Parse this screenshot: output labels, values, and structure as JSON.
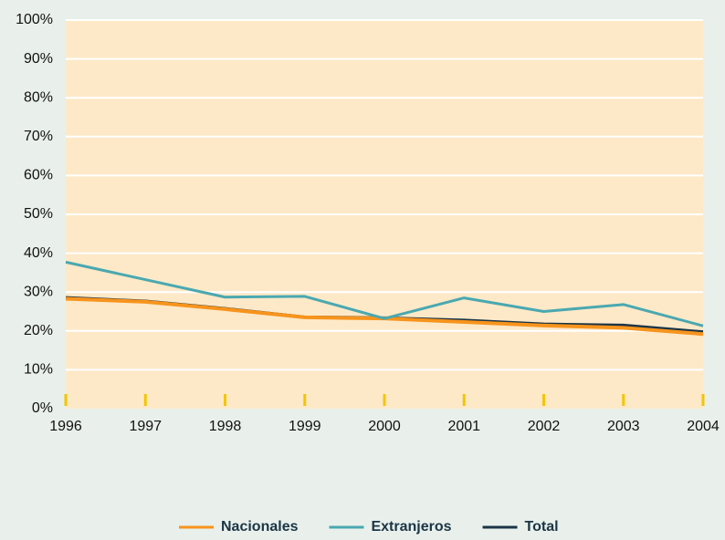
{
  "chart_data": {
    "type": "line",
    "categories": [
      "1996",
      "1997",
      "1998",
      "1999",
      "2000",
      "2001",
      "2002",
      "2003",
      "2004"
    ],
    "series": [
      {
        "name": "Nacionales",
        "color": "#f7941d",
        "values": [
          28.3,
          27.5,
          25.6,
          23.5,
          23.2,
          22.3,
          21.4,
          20.8,
          19.2
        ]
      },
      {
        "name": "Extranjeros",
        "color": "#4aa8b0",
        "values": [
          37.7,
          33.2,
          28.7,
          28.9,
          23.2,
          28.5,
          25.0,
          26.8,
          21.3
        ]
      },
      {
        "name": "Total",
        "color": "#1b3546",
        "values": [
          28.6,
          27.7,
          25.8,
          23.6,
          23.4,
          22.8,
          21.8,
          21.5,
          19.8
        ]
      }
    ],
    "ylim": [
      0,
      100
    ],
    "yticks": [
      {
        "value": 0,
        "label": "0%"
      },
      {
        "value": 10,
        "label": "10%"
      },
      {
        "value": 20,
        "label": "20%"
      },
      {
        "value": 30,
        "label": "30%"
      },
      {
        "value": 40,
        "label": "40%"
      },
      {
        "value": 50,
        "label": "50%"
      },
      {
        "value": 60,
        "label": "60%"
      },
      {
        "value": 70,
        "label": "70%"
      },
      {
        "value": 80,
        "label": "80%"
      },
      {
        "value": 90,
        "label": "90%"
      },
      {
        "value": 100,
        "label": "100%"
      }
    ],
    "grid": true,
    "legend": "bottom"
  }
}
